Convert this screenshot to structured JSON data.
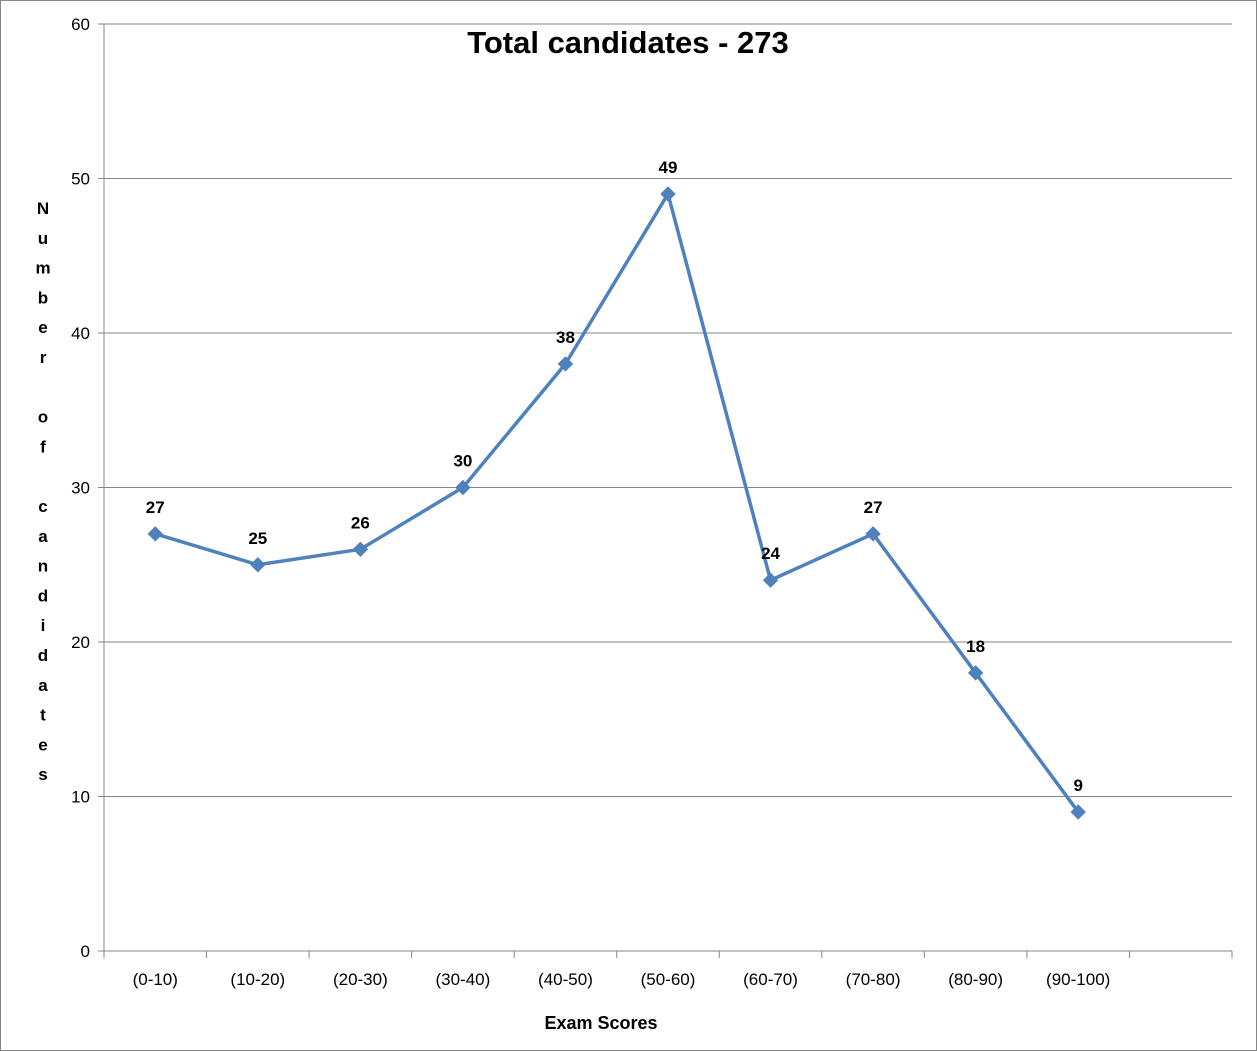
{
  "chart_data": {
    "type": "line",
    "title": "Total candidates - 273",
    "xlabel": "Exam Scores",
    "ylabel": "Number of candidates",
    "categories": [
      "(0-10)",
      "(10-20)",
      "(20-30)",
      "(30-40)",
      "(40-50)",
      "(50-60)",
      "(60-70)",
      "(70-80)",
      "(80-90)",
      "(90-100)"
    ],
    "series": [
      {
        "values": [
          27,
          25,
          26,
          30,
          38,
          49,
          24,
          27,
          18,
          9
        ]
      }
    ],
    "ylim": [
      0,
      60
    ],
    "yticks": [
      0,
      10,
      20,
      30,
      40,
      50,
      60
    ],
    "grid": true,
    "legend": "none",
    "colors": {
      "line": "#4F81BD",
      "grid": "#868686"
    }
  }
}
